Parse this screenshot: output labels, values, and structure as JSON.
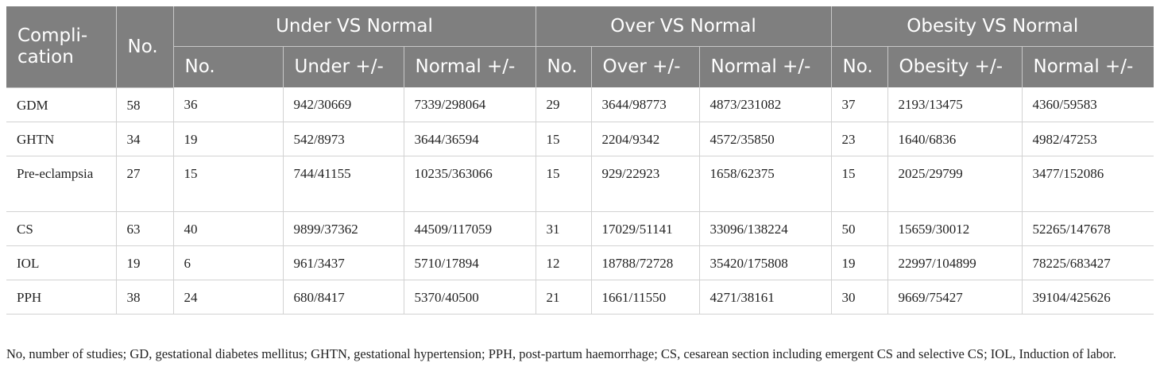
{
  "header": {
    "complication": "Compli-cation",
    "no": "No.",
    "groups": [
      "Under VS Normal",
      "Over VS Normal",
      "Obesity VS Normal"
    ],
    "sub": [
      "No.",
      "Under +/-",
      "Normal +/-",
      "No.",
      "Over +/-",
      "Normal +/-",
      "No.",
      "Obesity +/-",
      "Normal +/-"
    ]
  },
  "rows": [
    [
      "GDM",
      "58",
      "36",
      "942/30669",
      "7339/298064",
      "29",
      "3644/98773",
      "4873/231082",
      "37",
      "2193/13475",
      "4360/59583"
    ],
    [
      "GHTN",
      "34",
      "19",
      "542/8973",
      "3644/36594",
      "15",
      "2204/9342",
      "4572/35850",
      "23",
      "1640/6836",
      "4982/47253"
    ],
    [
      "Pre-eclampsia",
      "27",
      "15",
      "744/41155",
      "10235/363066",
      "15",
      "929/22923",
      "1658/62375",
      "15",
      "2025/29799",
      "3477/152086"
    ],
    [
      "CS",
      "63",
      "40",
      "9899/37362",
      "44509/117059",
      "31",
      "17029/51141",
      "33096/138224",
      "50",
      "15659/30012",
      "52265/147678"
    ],
    [
      "IOL",
      "19",
      "6",
      "961/3437",
      "5710/17894",
      "12",
      "18788/72728",
      "35420/175808",
      "19",
      "22997/104899",
      "78225/683427"
    ],
    [
      "PPH",
      "38",
      "24",
      "680/8417",
      "5370/40500",
      "21",
      "1661/11550",
      "4271/38161",
      "30",
      "9669/75427",
      "39104/425626"
    ]
  ],
  "footnote": "No, number of studies; GD, gestational diabetes mellitus; GHTN, gestational hypertension; PPH, post-partum haemorrhage; CS, cesarean section including emergent CS and selective CS; IOL, Induction of labor."
}
